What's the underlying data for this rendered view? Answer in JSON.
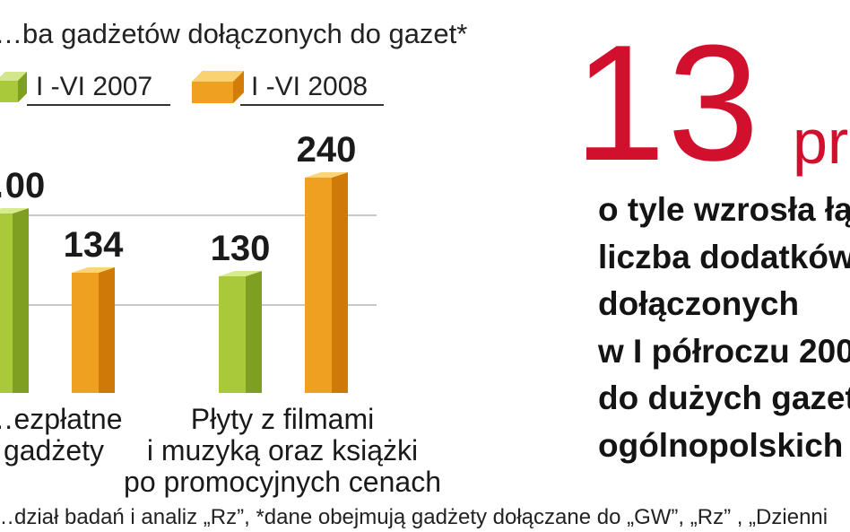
{
  "title": "…ba gadżetów dołączonych do gazet*",
  "legend": [
    {
      "label": "I -VI 2007",
      "color": "#a9c93a"
    },
    {
      "label": "I -VI 2008",
      "color": "#f0a020"
    }
  ],
  "chart_data": {
    "type": "bar",
    "categories": [
      "…ezpłatne\ngadżety",
      "Płyty z filmami\ni muzyką oraz książki\npo promocyjnych cenach"
    ],
    "series": [
      {
        "name": "I -VI 2007",
        "values": [
          200,
          130
        ]
      },
      {
        "name": "I -VI 2008",
        "values": [
          134,
          240
        ]
      }
    ],
    "value_labels": [
      [
        "…00",
        "134"
      ],
      [
        "130",
        "240"
      ]
    ],
    "ylim": [
      0,
      300
    ],
    "grid": true,
    "legend_position": "top"
  },
  "highlight": {
    "number": "13",
    "unit": "pr",
    "lines": [
      "o tyle wzrosła łą",
      "liczba ",
      "dołączonych",
      "w I półroczu 200",
      "do dużych gazet",
      "ogólnopolskich"
    ],
    "emphasis": "dodatków"
  },
  "source": "…dział badań i analiz „Rz”, *dane obejmują gadżety dołączane do „GW”, „Rz” , „Dzienni"
}
